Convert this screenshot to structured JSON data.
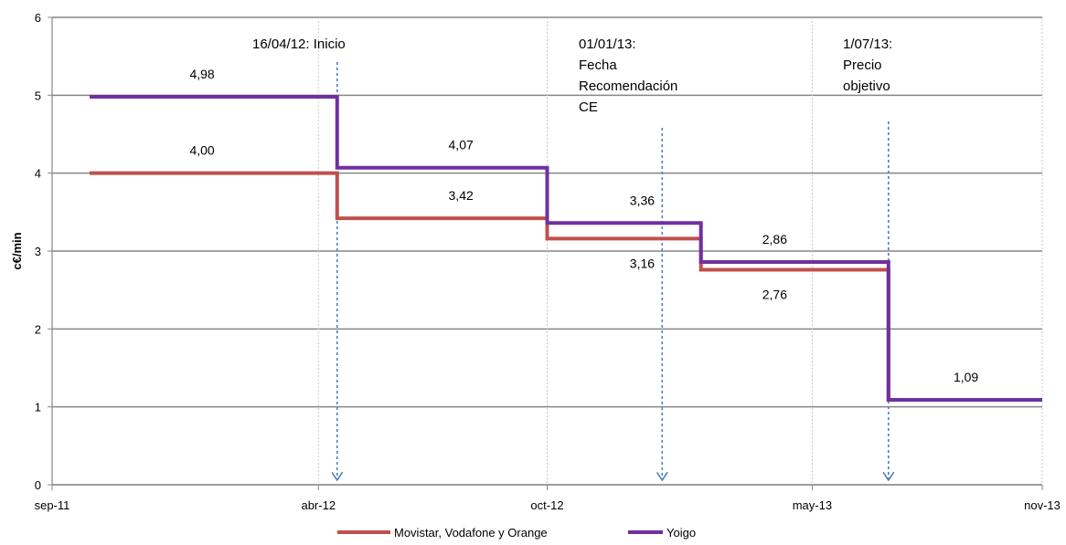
{
  "chart_data": {
    "type": "line",
    "step": true,
    "title": "",
    "xlabel": "",
    "ylabel": "c€/min",
    "ylim": [
      0,
      6
    ],
    "yticks": [
      "0",
      "1",
      "2",
      "3",
      "4",
      "5",
      "6"
    ],
    "xticks": [
      {
        "date": "2011-09-01",
        "label": "sep-11"
      },
      {
        "date": "2012-04-01",
        "label": "abr-12"
      },
      {
        "date": "2012-10-01",
        "label": "oct-12"
      },
      {
        "date": "2013-05-01",
        "label": "may-13"
      },
      {
        "date": "2013-11-01",
        "label": "nov-13"
      }
    ],
    "xlim": [
      "2011-09-01",
      "2013-11-01"
    ],
    "grid": true,
    "legend_position": "bottom",
    "series": [
      {
        "name": "Movistar, Vodafone y Orange",
        "color": "#c0504d",
        "points": [
          {
            "date": "2011-10-01",
            "value": 4.0
          },
          {
            "date": "2012-04-16",
            "value": 3.42
          },
          {
            "date": "2012-10-01",
            "value": 3.16
          },
          {
            "date": "2013-02-01",
            "value": 2.76
          },
          {
            "date": "2013-07-01",
            "value": 1.09
          },
          {
            "date": "2013-11-01",
            "value": 1.09
          }
        ],
        "labels": [
          {
            "date": "2011-12-30",
            "value": 4.0,
            "text": "4,00",
            "pos": "above"
          },
          {
            "date": "2012-07-24",
            "value": 3.42,
            "text": "3,42",
            "pos": "above"
          },
          {
            "date": "2012-12-16",
            "value": 3.16,
            "text": "3,16",
            "pos": "below"
          },
          {
            "date": "2013-04-01",
            "value": 2.76,
            "text": "2,76",
            "pos": "below"
          }
        ]
      },
      {
        "name": "Yoigo",
        "color": "#7030a0",
        "points": [
          {
            "date": "2011-10-01",
            "value": 4.98
          },
          {
            "date": "2012-04-16",
            "value": 4.07
          },
          {
            "date": "2012-10-01",
            "value": 3.36
          },
          {
            "date": "2013-02-01",
            "value": 2.86
          },
          {
            "date": "2013-07-01",
            "value": 1.09
          },
          {
            "date": "2013-11-01",
            "value": 1.09
          }
        ],
        "labels": [
          {
            "date": "2011-12-30",
            "value": 4.98,
            "text": "4,98",
            "pos": "above"
          },
          {
            "date": "2012-07-24",
            "value": 4.07,
            "text": "4,07",
            "pos": "above"
          },
          {
            "date": "2012-12-16",
            "value": 3.36,
            "text": "3,36",
            "pos": "above"
          },
          {
            "date": "2013-04-01",
            "value": 2.86,
            "text": "2,86",
            "pos": "above"
          },
          {
            "date": "2013-09-01",
            "value": 1.09,
            "text": "1,09",
            "pos": "above"
          }
        ]
      }
    ],
    "annotations": [
      {
        "date": "2012-04-16",
        "lines": [
          "16/04/12: Inicio"
        ],
        "color": "#4f81bd"
      },
      {
        "date": "2013-01-01",
        "lines": [
          "01/01/13:",
          "Fecha",
          "Recomendación",
          "CE"
        ],
        "color": "#4f81bd"
      },
      {
        "date": "2013-07-01",
        "lines": [
          "1/07/13:",
          "Precio",
          "objetivo"
        ],
        "color": "#4f81bd"
      }
    ]
  }
}
